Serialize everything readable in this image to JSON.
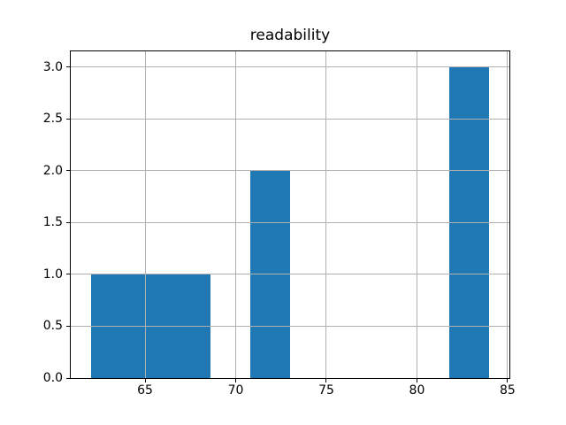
{
  "chart_data": {
    "type": "histogram",
    "title": "readability",
    "xlabel": "",
    "ylabel": "",
    "bin_edges": [
      62.0,
      64.2,
      66.4,
      68.6,
      70.8,
      73.0,
      75.2,
      77.4,
      79.6,
      81.8,
      84.0
    ],
    "counts": [
      1,
      1,
      1,
      0,
      2,
      0,
      0,
      0,
      0,
      3
    ],
    "xlim": [
      60.9,
      85.1
    ],
    "ylim": [
      0.0,
      3.15
    ],
    "xticks": [
      65,
      70,
      75,
      80,
      85
    ],
    "xtick_labels": [
      "65",
      "70",
      "75",
      "80",
      "85"
    ],
    "yticks": [
      0.0,
      0.5,
      1.0,
      1.5,
      2.0,
      2.5,
      3.0
    ],
    "ytick_labels": [
      "0.0",
      "0.5",
      "1.0",
      "1.5",
      "2.0",
      "2.5",
      "3.0"
    ],
    "grid": true,
    "legend_position": "none",
    "colors": {
      "bar": "#1f77b4",
      "grid": "#b0b0b0",
      "spine": "#000000",
      "text": "#000000",
      "background": "#ffffff"
    }
  }
}
